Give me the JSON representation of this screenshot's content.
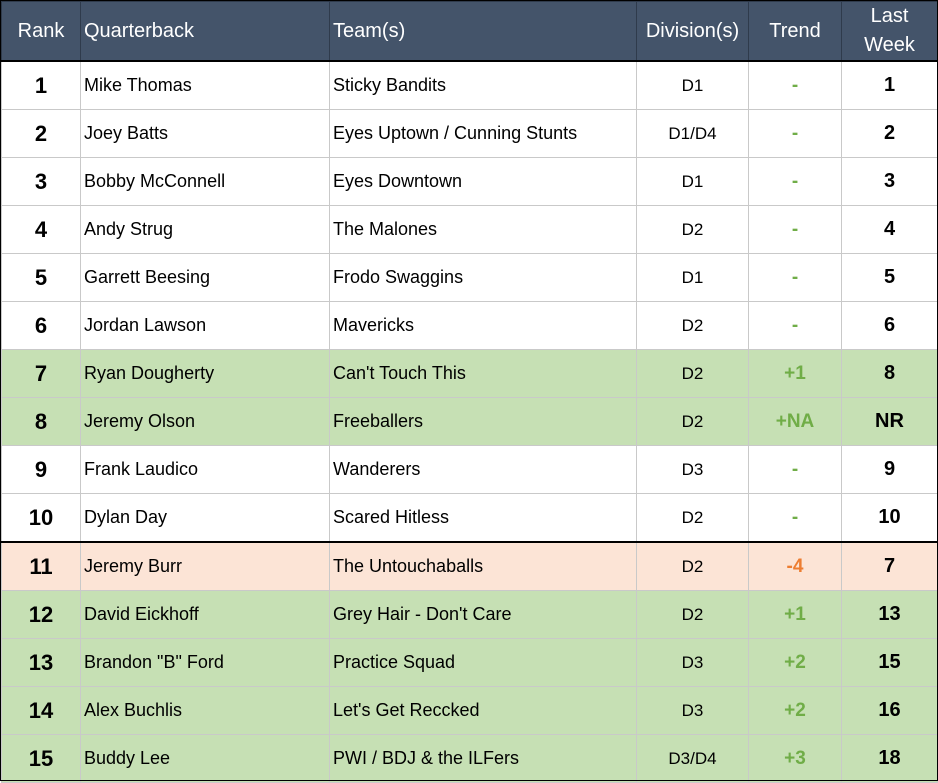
{
  "headers": {
    "rank": "Rank",
    "quarterback": "Quarterback",
    "teams": "Team(s)",
    "division": "Division(s)",
    "trend": "Trend",
    "last_week_1": "Last",
    "last_week_2": "Week"
  },
  "rows": [
    {
      "rank": "1",
      "qb": "Mike Thomas",
      "team": "Sticky Bandits",
      "division": "D1",
      "trend": "-",
      "last": "1",
      "status": "same"
    },
    {
      "rank": "2",
      "qb": "Joey Batts",
      "team": "Eyes Uptown / Cunning Stunts",
      "division": "D1/D4",
      "trend": "-",
      "last": "2",
      "status": "same"
    },
    {
      "rank": "3",
      "qb": "Bobby McConnell",
      "team": "Eyes Downtown",
      "division": "D1",
      "trend": "-",
      "last": "3",
      "status": "same"
    },
    {
      "rank": "4",
      "qb": "Andy Strug",
      "team": "The Malones",
      "division": "D2",
      "trend": "-",
      "last": "4",
      "status": "same"
    },
    {
      "rank": "5",
      "qb": "Garrett Beesing",
      "team": "Frodo Swaggins",
      "division": "D1",
      "trend": "-",
      "last": "5",
      "status": "same"
    },
    {
      "rank": "6",
      "qb": "Jordan Lawson",
      "team": "Mavericks",
      "division": "D2",
      "trend": "-",
      "last": "6",
      "status": "same"
    },
    {
      "rank": "7",
      "qb": "Ryan Dougherty",
      "team": "Can't Touch This",
      "division": "D2",
      "trend": "+1",
      "last": "8",
      "status": "up"
    },
    {
      "rank": "8",
      "qb": "Jeremy Olson",
      "team": "Freeballers",
      "division": "D2",
      "trend": "+NA",
      "last": "NR",
      "status": "up"
    },
    {
      "rank": "9",
      "qb": "Frank Laudico",
      "team": "Wanderers",
      "division": "D3",
      "trend": "-",
      "last": "9",
      "status": "same"
    },
    {
      "rank": "10",
      "qb": "Dylan Day",
      "team": "Scared Hitless",
      "division": "D2",
      "trend": "-",
      "last": "10",
      "status": "same"
    },
    {
      "rank": "11",
      "qb": "Jeremy Burr",
      "team": "The Untouchaballs",
      "division": "D2",
      "trend": "-4",
      "last": "7",
      "status": "down"
    },
    {
      "rank": "12",
      "qb": "David Eickhoff",
      "team": "Grey Hair - Don't Care",
      "division": "D2",
      "trend": "+1",
      "last": "13",
      "status": "up"
    },
    {
      "rank": "13",
      "qb": "Brandon \"B\" Ford",
      "team": "Practice Squad",
      "division": "D3",
      "trend": "+2",
      "last": "15",
      "status": "up"
    },
    {
      "rank": "14",
      "qb": "Alex Buchlis",
      "team": "Let's Get Reccked",
      "division": "D3",
      "trend": "+2",
      "last": "16",
      "status": "up"
    },
    {
      "rank": "15",
      "qb": "Buddy Lee",
      "team": "PWI / BDJ & the ILFers",
      "division": "D3/D4",
      "trend": "+3",
      "last": "18",
      "status": "up"
    }
  ],
  "colors": {
    "header_bg": "#44546a",
    "up_bg": "#c6e0b4",
    "down_bg": "#fce4d6",
    "trend_green": "#70ad47",
    "trend_orange": "#ed7d31"
  }
}
